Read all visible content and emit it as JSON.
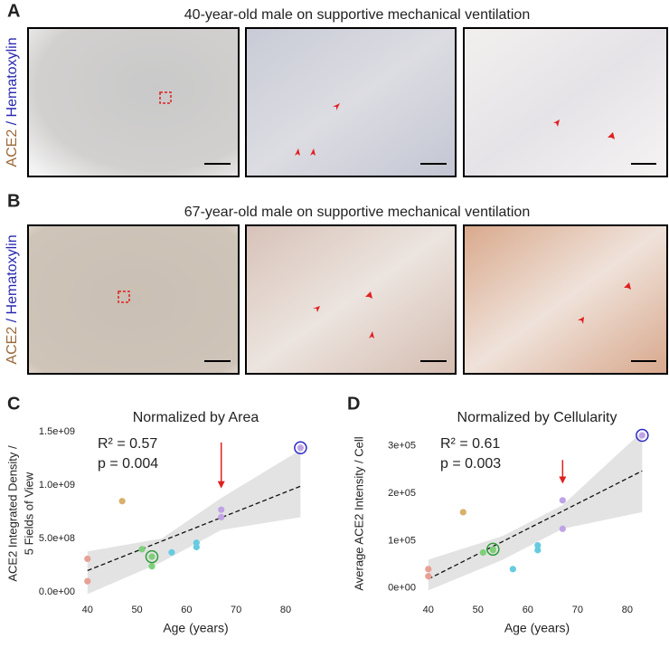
{
  "figure": {
    "panels": [
      {
        "label": "A",
        "title": "40-year-old male on supportive mechanical ventilation"
      },
      {
        "label": "B",
        "title": "67-year-old male on supportive mechanical ventilation"
      }
    ],
    "stain": [
      "ACE2",
      "/ Hematoxylin"
    ]
  },
  "chart_data": [
    {
      "type": "scatter",
      "panel_label": "C",
      "title": "Normalized by Area",
      "xlabel": "Age (years)",
      "ylabel": [
        "ACE2 Integrated Density /",
        "5 Fields of View"
      ],
      "x": [
        40,
        40,
        47,
        51,
        53,
        53,
        57,
        62,
        62,
        67,
        67,
        83
      ],
      "y": [
        310000000,
        100000000,
        850000000,
        400000000,
        330000000,
        240000000,
        370000000,
        460000000,
        420000000,
        770000000,
        700000000,
        1350000000
      ],
      "colors": [
        "#e8a095",
        "#e8a095",
        "#d9b06a",
        "#7fcf7a",
        "#7fcf7a",
        "#7fcf7a",
        "#66cbe0",
        "#66cbe0",
        "#66cbe0",
        "#bfa3e6",
        "#bfa3e6",
        "#bfa3e6"
      ],
      "rings": [
        {
          "index": 4,
          "color": "#2e9b3a"
        },
        {
          "index": 11,
          "color": "#2a2ac8"
        }
      ],
      "fit": {
        "x": [
          40,
          83
        ],
        "y": [
          200000000,
          990000000
        ]
      },
      "band": {
        "x": [
          40,
          55,
          67,
          83
        ],
        "lower": [
          -20000000,
          280000000,
          580000000,
          700000000
        ],
        "upper": [
          380000000,
          500000000,
          880000000,
          1330000000
        ]
      },
      "arrow": {
        "x": 67,
        "y": [
          1400000000,
          970000000
        ],
        "color": "#e02020"
      },
      "annotations": [
        "R² = 0.57",
        "p = 0.004"
      ],
      "xlim": [
        38.4,
        85.3
      ],
      "ylim": [
        -93000000,
        1560000000
      ],
      "xticks": [
        40,
        50,
        60,
        70,
        80
      ],
      "yticks": [
        {
          "value": 0,
          "label": "0.0e+00"
        },
        {
          "value": 500000000,
          "label": "5.0e+08"
        },
        {
          "value": 1000000000,
          "label": "1.0e+09"
        },
        {
          "value": 1500000000,
          "label": "1.5e+09"
        }
      ]
    },
    {
      "type": "scatter",
      "panel_label": "D",
      "title": "Normalized by Cellularity",
      "xlabel": "Age (years)",
      "ylabel": [
        "Average ACE2 Intensity / Cell"
      ],
      "x": [
        40,
        40,
        47,
        51,
        53,
        53,
        57,
        62,
        62,
        67,
        67,
        83
      ],
      "y": [
        40000,
        25000,
        160000,
        75000,
        82000,
        80000,
        40000,
        90000,
        80000,
        185000,
        125000,
        322000
      ],
      "colors": [
        "#e8a095",
        "#e8a095",
        "#d9b06a",
        "#7fcf7a",
        "#7fcf7a",
        "#7fcf7a",
        "#66cbe0",
        "#66cbe0",
        "#66cbe0",
        "#bfa3e6",
        "#bfa3e6",
        "#bfa3e6"
      ],
      "rings": [
        {
          "index": 4,
          "color": "#2e9b3a"
        },
        {
          "index": 11,
          "color": "#2a2ac8"
        }
      ],
      "fit": {
        "x": [
          40,
          83
        ],
        "y": [
          19000,
          247000
        ]
      },
      "band": {
        "x": [
          40,
          55,
          67,
          83
        ],
        "lower": [
          -5000,
          60000,
          125000,
          160000
        ],
        "upper": [
          60000,
          110000,
          175000,
          330000
        ]
      },
      "arrow": {
        "x": 67,
        "y": [
          270000,
          220000
        ],
        "color": "#e02020"
      },
      "annotations": [
        "R² = 0.61",
        "p = 0.003"
      ],
      "xlim": [
        38.4,
        85.3
      ],
      "ylim": [
        -29000,
        343000
      ],
      "xticks": [
        40,
        50,
        60,
        70,
        80
      ],
      "yticks": [
        {
          "value": 0,
          "label": "0e+00"
        },
        {
          "value": 100000,
          "label": "1e+05"
        },
        {
          "value": 200000,
          "label": "2e+05"
        },
        {
          "value": 300000,
          "label": "3e+05"
        }
      ]
    }
  ]
}
